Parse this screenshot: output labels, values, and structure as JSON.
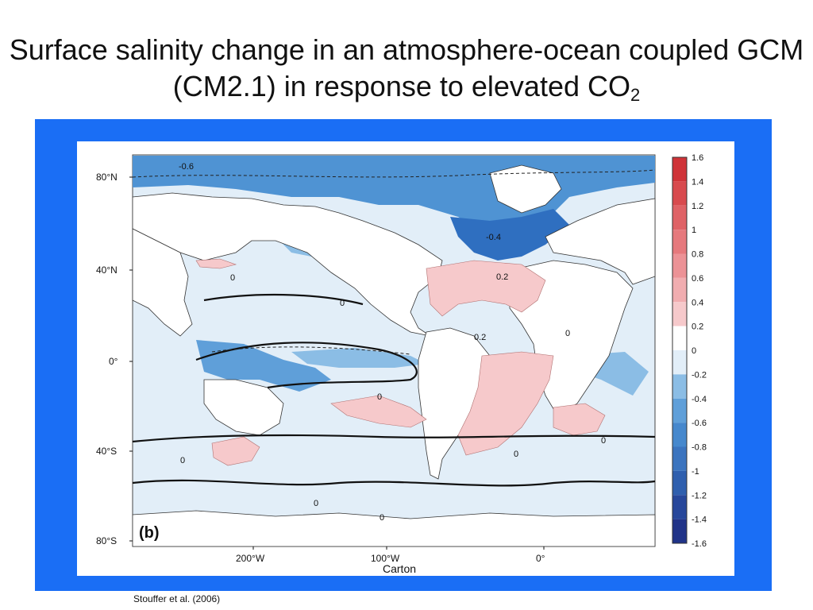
{
  "slide": {
    "title_main": "Surface salinity change in an atmosphere-ocean coupled GCM (CM2.1) in response to elevated CO",
    "title_sub": "2",
    "credit": "Carton",
    "citation": "Stouffer et al. (2006)"
  },
  "map": {
    "panel_label": "(b)",
    "lat_labels": [
      "80°N",
      "40°N",
      "0°",
      "40°S",
      "80°S"
    ],
    "lon_labels": [
      "200°W",
      "100°W",
      "0°"
    ],
    "contour_labels": [
      "-0.6",
      "-0.4",
      "0",
      "0",
      "0",
      "0.2",
      "0.2",
      "0",
      "0",
      "0",
      "0",
      "0",
      "0"
    ]
  },
  "colorbar": {
    "levels": [
      "1.6",
      "1.4",
      "1.2",
      "1",
      "0.8",
      "0.6",
      "0.4",
      "0.2",
      "0",
      "-0.2",
      "-0.4",
      "-0.6",
      "-0.8",
      "-1",
      "-1.2",
      "-1.4",
      "-1.6"
    ],
    "colors": [
      "#cf3338",
      "#d84a4e",
      "#df6266",
      "#e6797d",
      "#ec9296",
      "#f1adb0",
      "#f6c9cb",
      "#ffffff",
      "#e2eef8",
      "#8bbde5",
      "#5f9fd9",
      "#4688cd",
      "#3b74bf",
      "#2f5fae",
      "#27479b",
      "#203388"
    ]
  }
}
